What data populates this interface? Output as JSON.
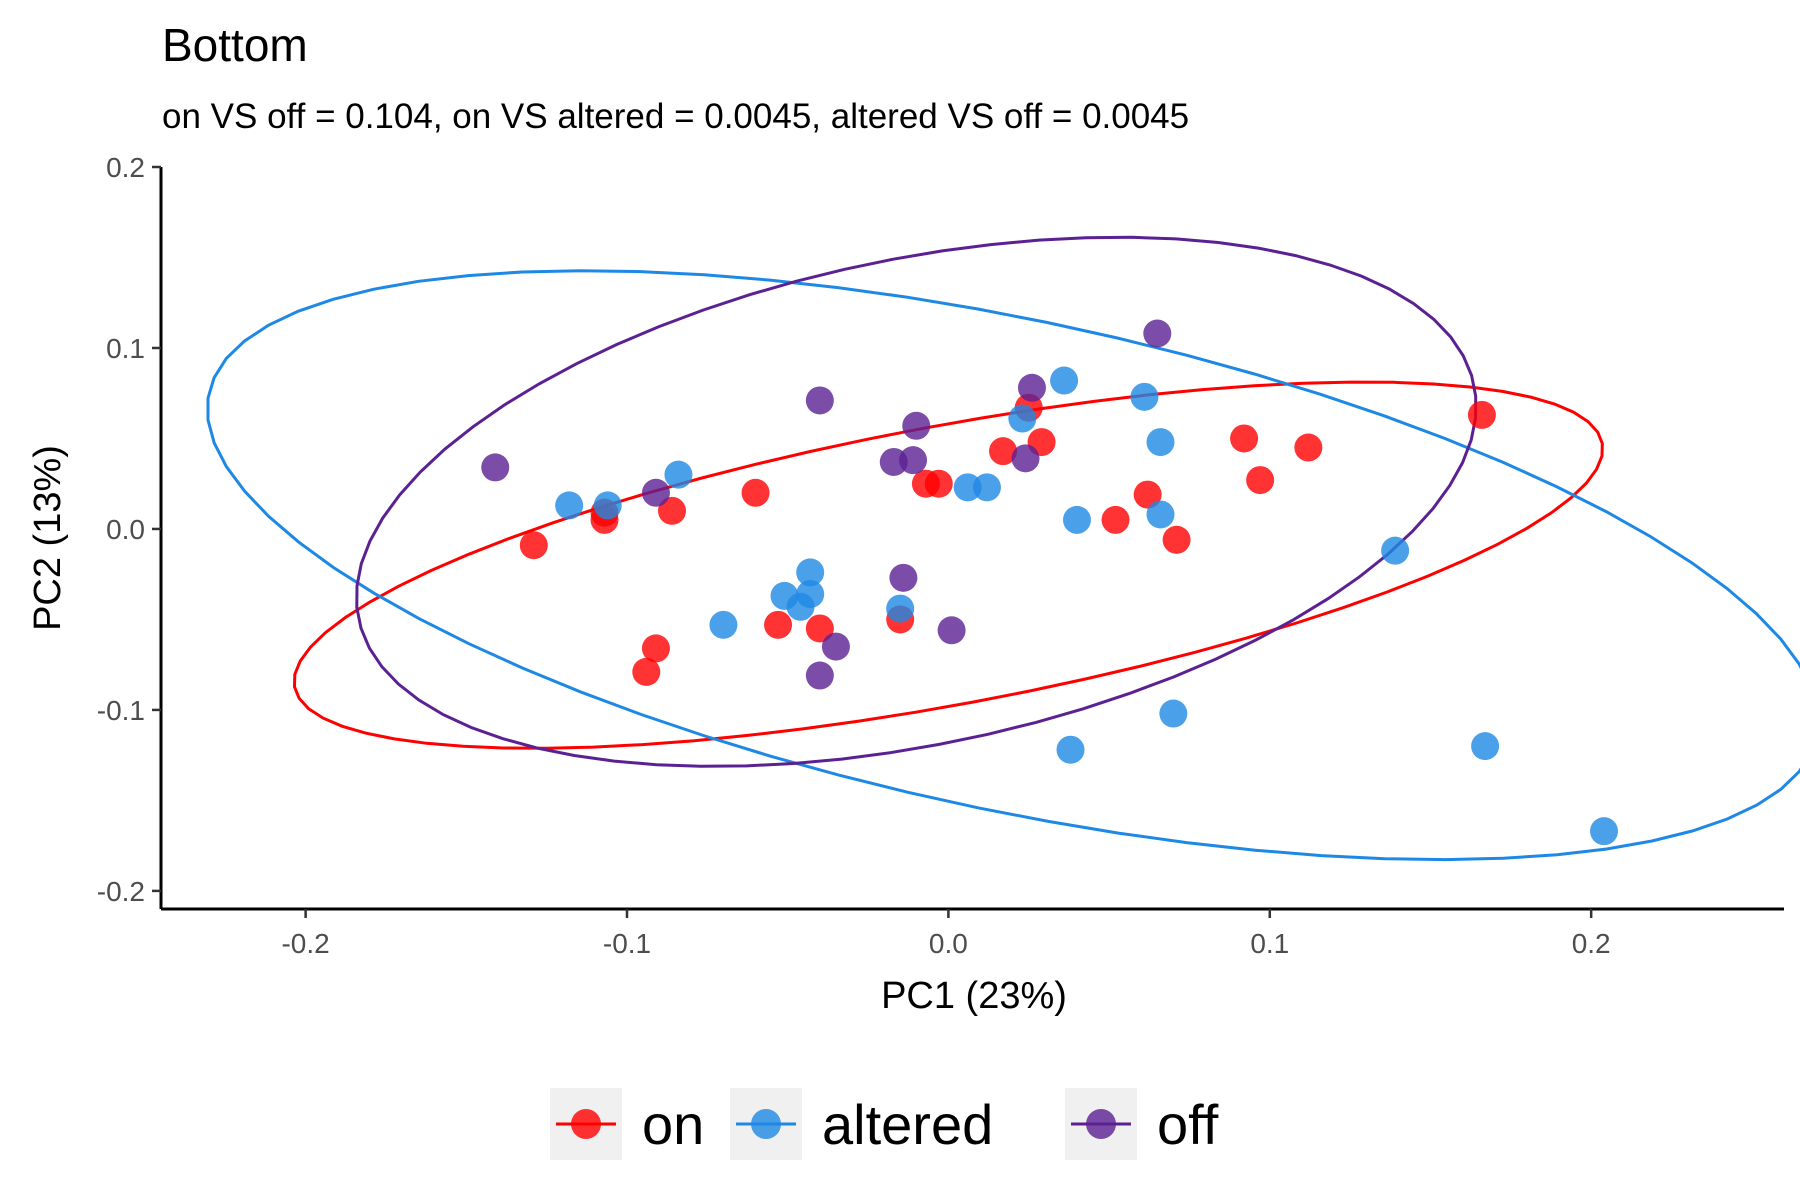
{
  "chart_data": {
    "type": "scatter",
    "title": "Bottom",
    "subtitle": "on VS off = 0.104, on VS altered = 0.0045, altered VS off = 0.0045",
    "xlabel": "PC1 (23%)",
    "ylabel": "PC2 (13%)",
    "xlim": [
      -0.245,
      0.26
    ],
    "ylim": [
      -0.21,
      0.2
    ],
    "x_ticks": [
      -0.2,
      -0.1,
      0.0,
      0.1,
      0.2
    ],
    "x_tick_labels": [
      "-0.2",
      "-0.1",
      "0.0",
      "0.1",
      "0.2"
    ],
    "y_ticks": [
      -0.2,
      -0.1,
      0.0,
      0.1,
      0.2
    ],
    "y_tick_labels": [
      "-0.2",
      "-0.1",
      "0.0",
      "0.1",
      "0.2"
    ],
    "grid": false,
    "legend_position": "bottom",
    "series": [
      {
        "name": "on",
        "color": "#ff0000",
        "points": [
          [
            -0.129,
            -0.009
          ],
          [
            -0.107,
            0.009
          ],
          [
            -0.107,
            0.005
          ],
          [
            -0.086,
            0.01
          ],
          [
            -0.06,
            0.02
          ],
          [
            -0.091,
            -0.066
          ],
          [
            -0.094,
            -0.079
          ],
          [
            -0.053,
            -0.053
          ],
          [
            -0.04,
            -0.055
          ],
          [
            -0.015,
            -0.05
          ],
          [
            -0.007,
            0.025
          ],
          [
            -0.003,
            0.025
          ],
          [
            0.017,
            0.043
          ],
          [
            0.025,
            0.067
          ],
          [
            0.029,
            0.048
          ],
          [
            0.052,
            0.005
          ],
          [
            0.062,
            0.019
          ],
          [
            0.071,
            -0.006
          ],
          [
            0.092,
            0.05
          ],
          [
            0.097,
            0.027
          ],
          [
            0.112,
            0.045
          ],
          [
            0.166,
            0.063
          ]
        ],
        "ellipse": {
          "center": [
            0.0,
            -0.02
          ],
          "semi_axes": [
            0.215,
            0.074
          ],
          "rotation_deg": 20
        }
      },
      {
        "name": "altered",
        "color": "#1e88e5",
        "points": [
          [
            -0.118,
            0.013
          ],
          [
            -0.106,
            0.013
          ],
          [
            -0.084,
            0.03
          ],
          [
            -0.07,
            -0.053
          ],
          [
            -0.051,
            -0.037
          ],
          [
            -0.046,
            -0.043
          ],
          [
            -0.043,
            -0.036
          ],
          [
            -0.043,
            -0.024
          ],
          [
            -0.015,
            -0.044
          ],
          [
            0.006,
            0.023
          ],
          [
            0.012,
            0.023
          ],
          [
            0.023,
            0.061
          ],
          [
            0.036,
            0.082
          ],
          [
            0.04,
            0.005
          ],
          [
            0.038,
            -0.122
          ],
          [
            0.061,
            0.073
          ],
          [
            0.066,
            0.048
          ],
          [
            0.066,
            0.008
          ],
          [
            0.07,
            -0.102
          ],
          [
            0.139,
            -0.012
          ],
          [
            0.167,
            -0.12
          ],
          [
            0.204,
            -0.167
          ]
        ],
        "ellipse": {
          "center": [
            0.02,
            -0.02
          ],
          "semi_axes": [
            0.27,
            0.128
          ],
          "rotation_deg": -25
        }
      },
      {
        "name": "off",
        "color": "#5b2192",
        "points": [
          [
            -0.141,
            0.034
          ],
          [
            -0.091,
            0.02
          ],
          [
            -0.04,
            0.071
          ],
          [
            -0.04,
            -0.081
          ],
          [
            -0.035,
            -0.065
          ],
          [
            -0.017,
            0.037
          ],
          [
            -0.011,
            0.038
          ],
          [
            -0.01,
            0.057
          ],
          [
            -0.014,
            -0.027
          ],
          [
            0.001,
            -0.056
          ],
          [
            0.024,
            0.039
          ],
          [
            0.026,
            0.078
          ],
          [
            0.065,
            0.108
          ]
        ],
        "ellipse": {
          "center": [
            -0.01,
            0.015
          ],
          "semi_axes": [
            0.19,
            0.125
          ],
          "rotation_deg": 32
        }
      }
    ]
  }
}
